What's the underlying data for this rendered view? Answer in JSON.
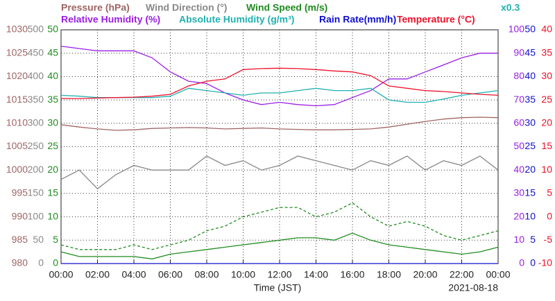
{
  "chart_data": {
    "type": "line",
    "xlabel": "Time (JST)",
    "date": "2021-08-18",
    "scale_note": "x0.3",
    "x": [
      0,
      1,
      2,
      3,
      4,
      5,
      6,
      7,
      8,
      9,
      10,
      11,
      12,
      13,
      14,
      15,
      16,
      17,
      18,
      19,
      20,
      21,
      22,
      23,
      24
    ],
    "xlim": [
      0,
      24
    ],
    "xticks": [
      {
        "value": 0,
        "label": "00:00"
      },
      {
        "value": 2,
        "label": "02:00"
      },
      {
        "value": 4,
        "label": "04:00"
      },
      {
        "value": 6,
        "label": "06:00"
      },
      {
        "value": 8,
        "label": "08:00"
      },
      {
        "value": 10,
        "label": "10:00"
      },
      {
        "value": 12,
        "label": "12:00"
      },
      {
        "value": 14,
        "label": "14:00"
      },
      {
        "value": 16,
        "label": "16:00"
      },
      {
        "value": 18,
        "label": "18:00"
      },
      {
        "value": 20,
        "label": "20:00"
      },
      {
        "value": 22,
        "label": "22:00"
      },
      {
        "value": 24,
        "label": "00:00"
      }
    ],
    "grid": true,
    "axes": [
      {
        "color": "#a06464",
        "lim": [
          980,
          1030
        ],
        "ticks": [
          980,
          985,
          990,
          995,
          1000,
          1005,
          1010,
          1015,
          1020,
          1025,
          1030
        ]
      },
      {
        "color": "#888888",
        "lim": [
          0,
          500
        ],
        "ticks": [
          0,
          50,
          100,
          150,
          200,
          250,
          300,
          350,
          400,
          450,
          500
        ]
      },
      {
        "color": "#1e8c1e",
        "lim": [
          0,
          50
        ],
        "ticks": [
          0,
          5,
          10,
          15,
          20,
          25,
          30,
          35,
          40,
          45,
          50
        ]
      },
      {
        "color": "#9a1ee6",
        "lim": [
          0,
          100
        ],
        "ticks": [
          0,
          10,
          20,
          30,
          40,
          50,
          60,
          70,
          80,
          90,
          100
        ]
      },
      {
        "color": "#1010d0",
        "lim": [
          0,
          50
        ],
        "ticks": [
          0,
          5,
          10,
          15,
          20,
          25,
          30,
          35,
          40,
          45,
          50
        ]
      },
      {
        "color": "#f0102a",
        "lim": [
          -10,
          40
        ],
        "ticks": [
          -10,
          -5,
          0,
          5,
          10,
          15,
          20,
          25,
          30,
          35,
          40
        ]
      }
    ],
    "series": [
      {
        "name": "Pressure (hPa)",
        "color": "#a06464",
        "axis": 0,
        "values": [
          1009.7,
          1009.2,
          1008.8,
          1008.5,
          1008.6,
          1008.9,
          1009.0,
          1009.1,
          1009.0,
          1008.8,
          1008.9,
          1009.0,
          1008.8,
          1008.7,
          1008.6,
          1008.6,
          1008.7,
          1008.8,
          1009.2,
          1009.8,
          1010.4,
          1010.9,
          1011.2,
          1011.3,
          1011.2
        ]
      },
      {
        "name": "Wind Direction (°)",
        "color": "#888888",
        "axis": 1,
        "values": [
          180,
          200,
          160,
          190,
          210,
          200,
          200,
          200,
          230,
          210,
          220,
          200,
          210,
          230,
          220,
          210,
          200,
          220,
          210,
          230,
          200,
          220,
          210,
          230,
          200
        ]
      },
      {
        "name": "Wind Speed (m/s)",
        "color": "#1e8c1e",
        "axis": 2,
        "values": [
          2.5,
          1.5,
          1.5,
          1.5,
          1.5,
          1.0,
          2.0,
          2.5,
          3.0,
          3.5,
          4.0,
          4.5,
          5.0,
          5.5,
          5.5,
          5.0,
          6.5,
          5.0,
          4.0,
          3.5,
          3.0,
          2.5,
          2.0,
          2.5,
          3.5
        ]
      },
      {
        "color": "#1e8c1e",
        "axis": 2,
        "dash": true,
        "values": [
          4,
          3,
          3,
          3,
          4,
          3,
          4,
          5,
          7,
          8,
          10,
          11,
          12,
          12,
          10,
          11,
          13,
          10,
          8,
          9,
          8,
          6,
          5,
          6,
          7
        ]
      },
      {
        "name": "Relative Humidity (%)",
        "color": "#9a1ee6",
        "axis": 3,
        "values": [
          93,
          92,
          91,
          91,
          91,
          88,
          82,
          78,
          77,
          73,
          70,
          68,
          69,
          68,
          67.5,
          68,
          71,
          74,
          79,
          79,
          82,
          85,
          88,
          90,
          90
        ]
      },
      {
        "name": "Absolute Humidity (g/m³)",
        "color": "#20b0b0",
        "axis": 4,
        "values": [
          36,
          35.8,
          35.5,
          35.5,
          35.5,
          35.5,
          35.8,
          37.5,
          37,
          36.5,
          36,
          36.5,
          36.5,
          37,
          37.5,
          37,
          37,
          37.5,
          35,
          34.5,
          34.5,
          35.2,
          36,
          36.5,
          37
        ]
      },
      {
        "name": "Rain Rate(mm/h)",
        "color": "#1010d0",
        "axis": 4,
        "values": [
          0,
          0,
          0,
          0,
          0,
          0,
          0,
          0,
          0,
          0,
          0,
          0,
          0,
          0,
          0,
          0,
          0,
          0,
          0,
          0,
          0,
          0,
          0,
          0,
          0
        ]
      },
      {
        "name": "Temperature (°C)",
        "color": "#f0102a",
        "axis": 5,
        "values": [
          25.3,
          25.3,
          25.4,
          25.5,
          25.6,
          25.8,
          26.2,
          28,
          29,
          29.5,
          31.5,
          31.7,
          31.8,
          31.7,
          31.5,
          31.2,
          31,
          30.2,
          28,
          27.5,
          27,
          26.8,
          26.5,
          26.2,
          26
        ]
      }
    ]
  }
}
